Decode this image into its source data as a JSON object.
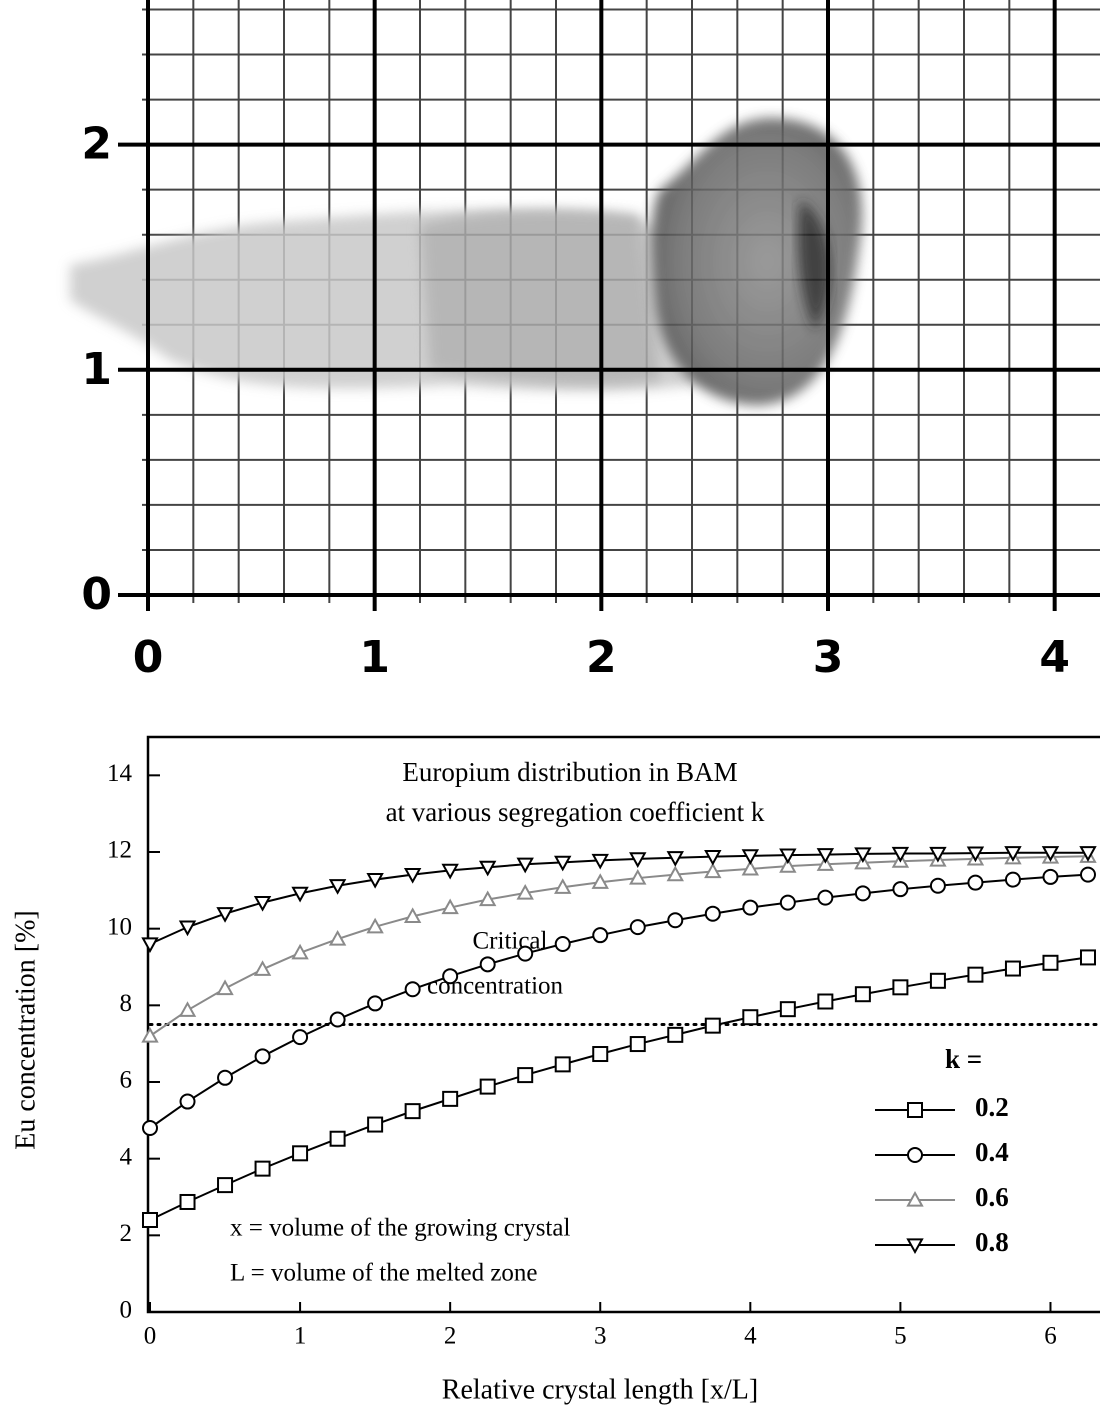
{
  "chart_data": [
    {
      "type": "photo",
      "xlim": [
        0,
        4.2
      ],
      "ylim": [
        0,
        2.62
      ],
      "xticks": [
        0,
        1,
        2,
        3,
        4
      ],
      "yticks": [
        0,
        1,
        2
      ],
      "grid": true
    },
    {
      "type": "line",
      "title": [
        "Europium distribution in BAM",
        "at various segregation coefficient k"
      ],
      "x_label": "Relative crystal length [x/L]",
      "y_label": "Eu concentration [%]",
      "xlim": [
        0,
        6.33
      ],
      "ylim": [
        0,
        15
      ],
      "xticks": [
        0,
        1,
        2,
        3,
        4,
        5,
        6
      ],
      "yticks": [
        0,
        2,
        4,
        6,
        8,
        10,
        12,
        14
      ],
      "critical_value": 7.5,
      "critical_label": [
        "Critical",
        "concentration"
      ],
      "notes": [
        "x = volume of the growing crystal",
        "L = volume of the melted zone"
      ],
      "legend_title": "k =",
      "x": [
        0,
        0.25,
        0.5,
        0.75,
        1,
        1.25,
        1.5,
        1.75,
        2,
        2.25,
        2.5,
        2.75,
        3,
        3.25,
        3.5,
        3.75,
        4,
        4.25,
        4.5,
        4.75,
        5,
        5.25,
        5.5,
        5.75,
        6,
        6.25
      ],
      "series": [
        {
          "name": "0.2",
          "color": "#000000",
          "marker": "square",
          "values": [
            2.4,
            2.87,
            3.31,
            3.74,
            4.14,
            4.52,
            4.89,
            5.24,
            5.56,
            5.88,
            6.18,
            6.46,
            6.73,
            6.99,
            7.23,
            7.47,
            7.69,
            7.9,
            8.1,
            8.29,
            8.47,
            8.64,
            8.8,
            8.96,
            9.11,
            9.25
          ]
        },
        {
          "name": "0.4",
          "color": "#000000",
          "marker": "circle",
          "values": [
            4.8,
            5.49,
            6.11,
            6.67,
            7.17,
            7.63,
            8.05,
            8.42,
            8.76,
            9.07,
            9.35,
            9.6,
            9.83,
            10.04,
            10.22,
            10.39,
            10.55,
            10.68,
            10.81,
            10.92,
            11.03,
            11.12,
            11.2,
            11.28,
            11.35,
            11.41
          ]
        },
        {
          "name": "0.6",
          "color": "#8a8a8a",
          "marker": "triangle-up",
          "values": [
            7.2,
            7.87,
            8.44,
            8.94,
            9.37,
            9.73,
            10.05,
            10.32,
            10.55,
            10.76,
            10.93,
            11.08,
            11.21,
            11.32,
            11.41,
            11.49,
            11.56,
            11.63,
            11.68,
            11.72,
            11.76,
            11.79,
            11.82,
            11.85,
            11.87,
            11.89
          ]
        },
        {
          "name": "0.8",
          "color": "#000000",
          "marker": "triangle-down",
          "values": [
            9.6,
            10.04,
            10.39,
            10.68,
            10.92,
            11.12,
            11.28,
            11.41,
            11.52,
            11.6,
            11.68,
            11.73,
            11.78,
            11.82,
            11.85,
            11.88,
            11.9,
            11.92,
            11.93,
            11.95,
            11.96,
            11.96,
            11.97,
            11.98,
            11.98,
            11.98
          ]
        }
      ]
    }
  ]
}
